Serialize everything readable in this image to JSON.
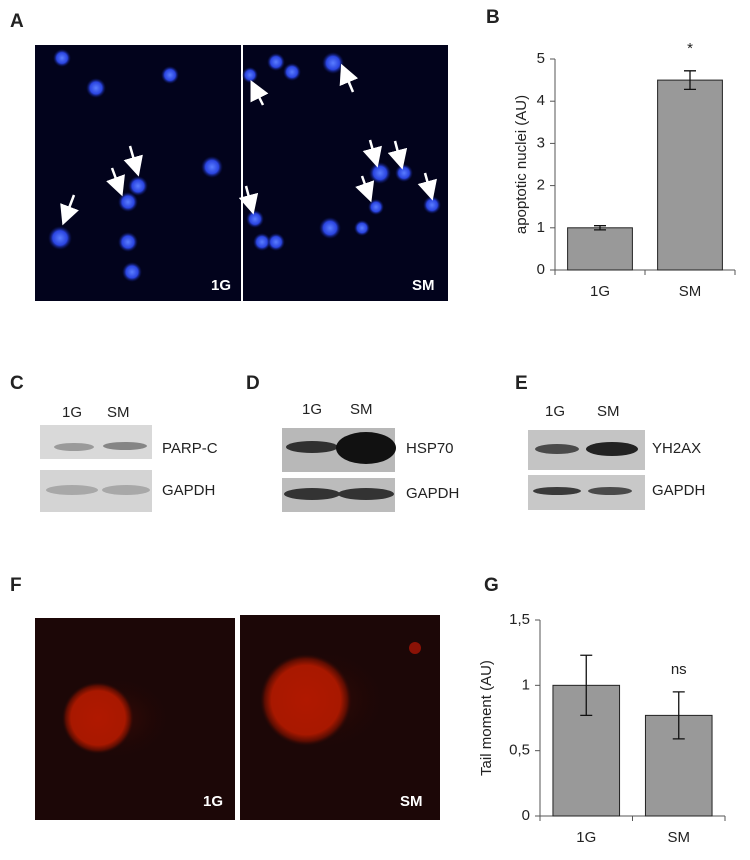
{
  "figure": {
    "panel_labels": [
      "A",
      "B",
      "C",
      "D",
      "E",
      "F",
      "G"
    ],
    "micrographs": {
      "A": [
        "1G",
        "SM"
      ],
      "F": [
        "1G",
        "SM"
      ]
    },
    "blots": [
      {
        "lanes": [
          "1G",
          "SM"
        ],
        "bands": [
          "PARP-C",
          "GAPDH"
        ]
      },
      {
        "lanes": [
          "1G",
          "SM"
        ],
        "bands": [
          "HSP70",
          "GAPDH"
        ]
      },
      {
        "lanes": [
          "1G",
          "SM"
        ],
        "bands": [
          "YH2AX",
          "GAPDH"
        ]
      }
    ]
  },
  "chart_data": [
    {
      "type": "bar",
      "ylabel": "apoptotic nuclei (AU)",
      "categories": [
        "1G",
        "SM"
      ],
      "values": [
        1,
        4.5
      ],
      "errors": [
        0.05,
        0.22
      ],
      "annotations": [
        null,
        "*"
      ],
      "color": "#999999",
      "ylim": [
        0,
        5
      ],
      "yticks": [
        0,
        1,
        2,
        3,
        4,
        5
      ],
      "grid": false
    },
    {
      "type": "bar",
      "ylabel": "Tail moment (AU)",
      "categories": [
        "1G",
        "SM"
      ],
      "values": [
        1,
        0.77
      ],
      "errors": [
        0.23,
        0.18
      ],
      "annotations": [
        null,
        "ns"
      ],
      "color": "#999999",
      "ylim": [
        0,
        1.5
      ],
      "yticks": [
        0,
        {
          "value": 0.5,
          "label": "0,5"
        },
        1,
        {
          "value": 1.5,
          "label": "1,5"
        }
      ],
      "grid": false
    }
  ]
}
